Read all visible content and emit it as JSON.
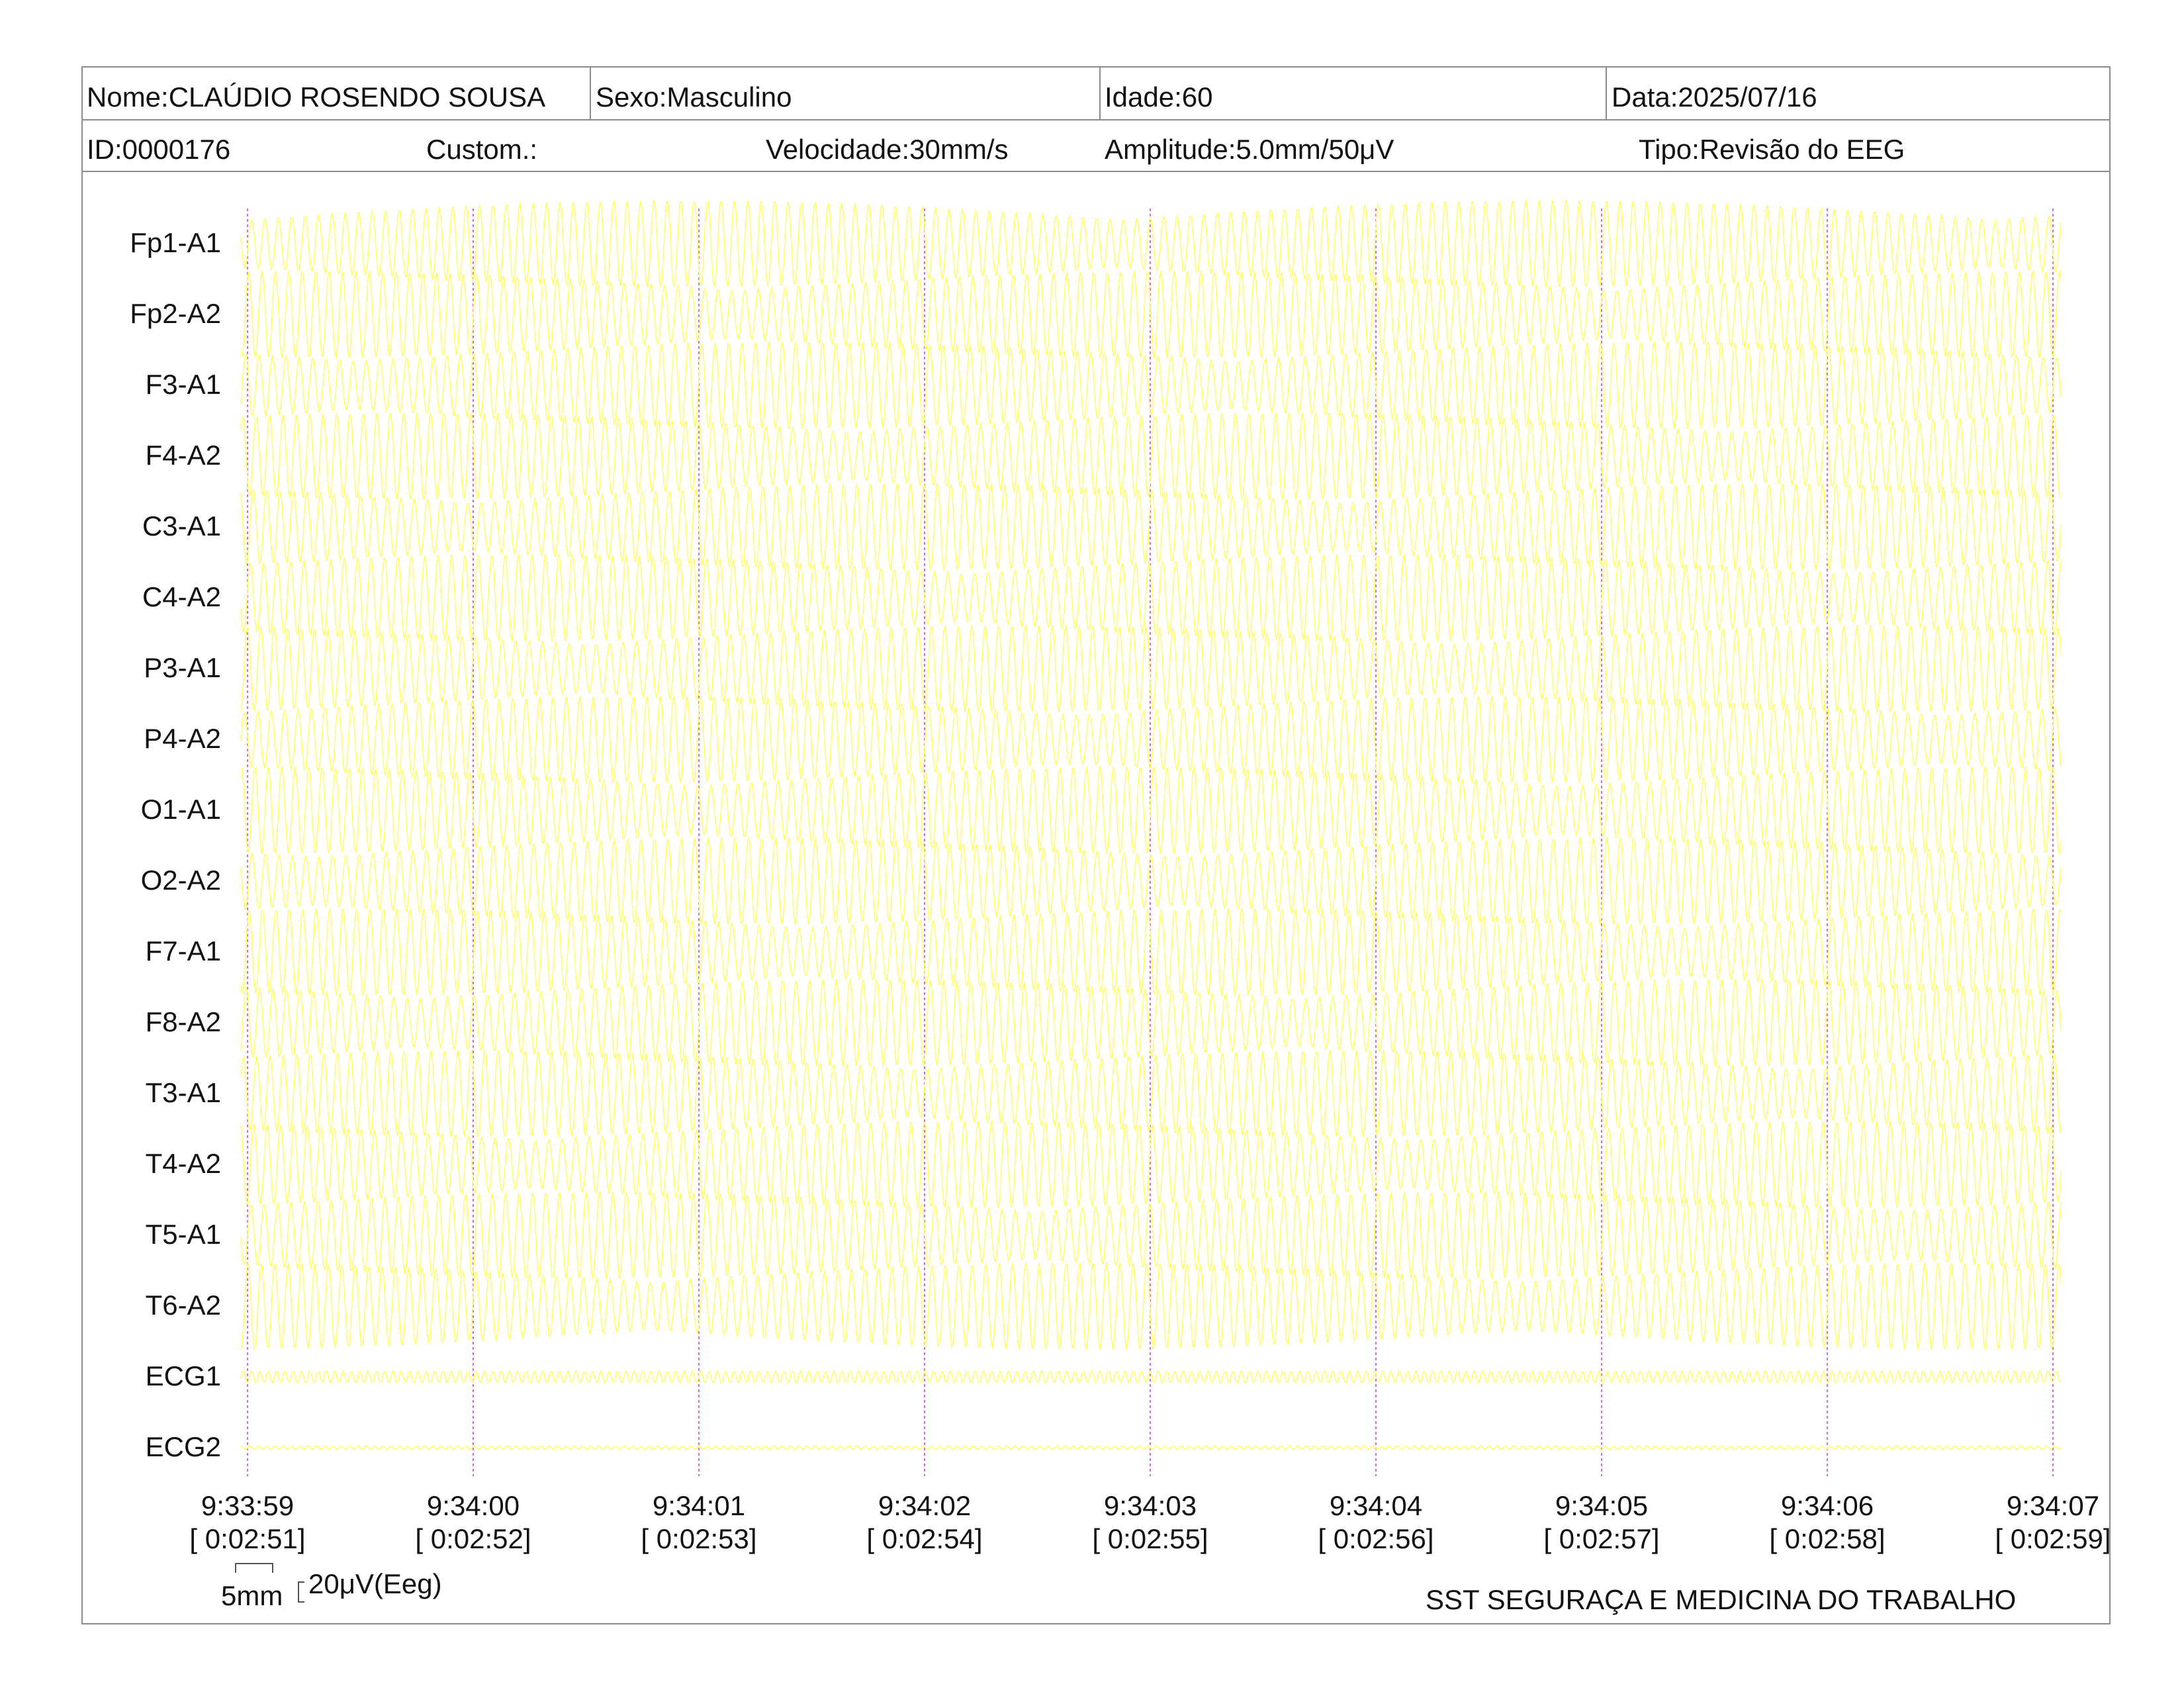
{
  "header": {
    "name": "Nome:CLAÚDIO ROSENDO SOUSA",
    "sex": "Sexo:Masculino",
    "age": "Idade:60",
    "date": "Data:2025/07/16",
    "id": "ID:0000176",
    "custom": "Custom.:",
    "speed": "Velocidade:30mm/s",
    "amplitude": "Amplitude:5.0mm/50μV",
    "type": "Tipo:Revisão do EEG"
  },
  "chart_data": {
    "type": "line",
    "channels": [
      "Fp1-A1",
      "Fp2-A2",
      "F3-A1",
      "F4-A2",
      "C3-A1",
      "C4-A2",
      "P3-A1",
      "P4-A2",
      "O1-A1",
      "O2-A2",
      "F7-A1",
      "F8-A2",
      "T3-A1",
      "T4-A2",
      "T5-A1",
      "T6-A2",
      "ECG1",
      "ECG2"
    ],
    "time_ticks": [
      {
        "clock": "9:33:59",
        "elapsed": "[ 0:02:51]"
      },
      {
        "clock": "9:34:00",
        "elapsed": "[ 0:02:52]"
      },
      {
        "clock": "9:34:01",
        "elapsed": "[ 0:02:53]"
      },
      {
        "clock": "9:34:02",
        "elapsed": "[ 0:02:54]"
      },
      {
        "clock": "9:34:03",
        "elapsed": "[ 0:02:55]"
      },
      {
        "clock": "9:34:04",
        "elapsed": "[ 0:02:56]"
      },
      {
        "clock": "9:34:05",
        "elapsed": "[ 0:02:57]"
      },
      {
        "clock": "9:34:06",
        "elapsed": "[ 0:02:58]"
      },
      {
        "clock": "9:34:07",
        "elapsed": "[ 0:02:59]"
      }
    ],
    "trace_color": "#ffff66",
    "marker_color": "#d36ad8"
  },
  "footer": {
    "scale_time": "5mm",
    "scale_amp": "20μV(Eeg)",
    "company": "SST SEGURAÇA E MEDICINA DO TRABALHO"
  }
}
